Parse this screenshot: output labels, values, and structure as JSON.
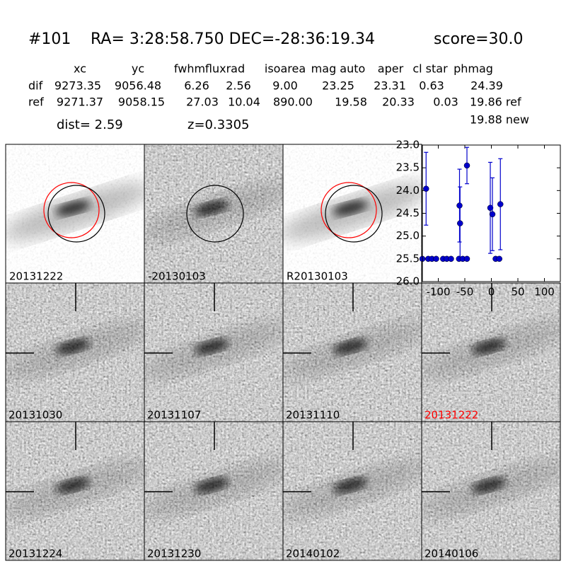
{
  "header": {
    "id": "#101",
    "coords": "RA= 3:28:58.750 DEC=-28:36:19.34",
    "score": "score=30.0"
  },
  "table": {
    "columns": [
      "xc",
      "yc",
      "fwhm",
      "fluxrad",
      "isoarea",
      "mag auto",
      "aper",
      "cl star",
      "phmag"
    ],
    "rows": [
      [
        "dif",
        "9273.35",
        "9056.48",
        "6.26",
        "2.56",
        "9.00",
        "23.25",
        "23.31",
        "0.63",
        "24.39"
      ],
      [
        "ref",
        "9271.37",
        "9058.15",
        "27.03",
        "10.04",
        "890.00",
        "19.58",
        "20.33",
        "0.03",
        "19.86 ref"
      ]
    ],
    "extra": "19.88 new"
  },
  "dist": "dist=  2.59",
  "z": "z=0.3305",
  "stamps": {
    "top": [
      "20131222",
      "-20130103",
      "R20130103"
    ],
    "grid": [
      "20131030",
      "20131107",
      "20131110",
      "20131222",
      "20131224",
      "20131230",
      "20140102",
      "20140106"
    ],
    "highlight_color": "#ff0000",
    "highlight_index": 3
  },
  "chart_data": {
    "type": "scatter",
    "color": "#0000cc",
    "x": [
      -130,
      -123,
      -119,
      -112,
      -104,
      -91,
      -84,
      -76,
      -61,
      -60,
      -59,
      -54,
      -46,
      -46,
      -2,
      2,
      8,
      15,
      17
    ],
    "y": [
      25.5,
      23.96,
      25.5,
      25.5,
      25.5,
      25.5,
      25.5,
      25.5,
      25.5,
      24.33,
      24.72,
      25.5,
      25.5,
      23.45,
      24.38,
      24.52,
      25.5,
      25.5,
      24.3
    ],
    "errors": [
      null,
      0.8,
      null,
      null,
      null,
      null,
      null,
      null,
      null,
      0.8,
      0.8,
      null,
      null,
      0.4,
      1.0,
      0.8,
      null,
      null,
      1.0
    ],
    "xlim": [
      -130,
      130
    ],
    "ylim": [
      26.0,
      23.0
    ],
    "xticks": [
      -100,
      -50,
      0,
      50,
      100
    ],
    "yticks": [
      {
        "value": 23.0,
        "label": "23.0"
      },
      {
        "value": 23.5,
        "label": "23.5"
      },
      {
        "value": 24.0,
        "label": "24.0"
      },
      {
        "value": 24.5,
        "label": "24.5"
      },
      {
        "value": 25.0,
        "label": "25.0"
      },
      {
        "value": 25.5,
        "label": "25.5"
      },
      {
        "value": 26.0,
        "label": "26.0"
      }
    ]
  }
}
